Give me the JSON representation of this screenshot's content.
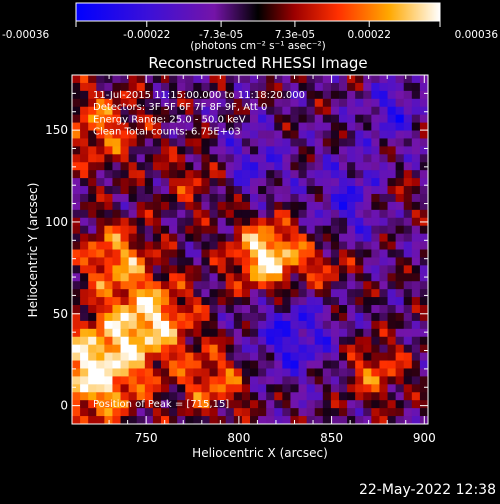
{
  "chart_data": {
    "type": "heatmap",
    "title": "Reconstructed RHESSI Image",
    "xlabel": "Heliocentric X (arcsec)",
    "ylabel": "Heliocentric Y (arcsec)",
    "xlim": [
      710,
      902
    ],
    "ylim": [
      -10,
      180
    ],
    "x_ticks": [
      750,
      800,
      850,
      900
    ],
    "y_ticks": [
      0,
      50,
      100,
      150
    ],
    "colorbar": {
      "range": [
        -0.00036,
        0.00036
      ],
      "tick_labels": [
        "-0.00036",
        "-0.00022",
        "-7.3e-05",
        "7.3e-05",
        "0.00022",
        "0.00036"
      ],
      "tick_values": [
        -0.00036,
        -0.00022,
        -7.3e-05,
        7.3e-05,
        0.00022,
        0.00036
      ],
      "units": "(photons cm⁻² s⁻¹ asec⁻²)"
    },
    "annotations": [
      "11-Jul-2015 11:15:00.000 to 11:18:20.000",
      "Detectors: 3F 5F 6F 7F 8F 9F, Att 0",
      "Energy Range: 25.0 - 50.0 keV",
      "Clean     Total counts: 6.75E+03"
    ],
    "peak_label": "Position of Peak = [715,15]",
    "timestamp": "22-May-2022 12:38"
  }
}
